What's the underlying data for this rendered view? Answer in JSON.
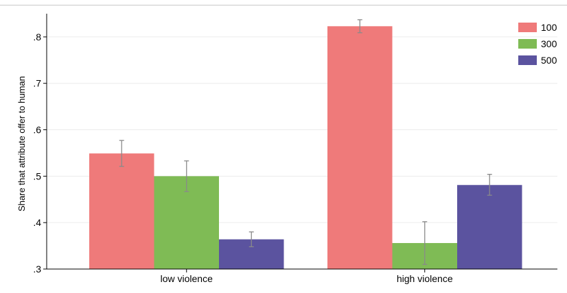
{
  "chart_data": {
    "type": "bar",
    "title": "",
    "xlabel": "",
    "ylabel": "Share that attribute offer to human",
    "categories": [
      "low violence",
      "high violence"
    ],
    "series": [
      {
        "name": "100",
        "color": "#ef7a7a",
        "values": [
          0.549,
          0.823
        ],
        "ci_low": [
          0.521,
          0.809
        ],
        "ci_high": [
          0.577,
          0.837
        ]
      },
      {
        "name": "300",
        "color": "#7fbb55",
        "values": [
          0.5,
          0.356
        ],
        "ci_low": [
          0.467,
          0.31
        ],
        "ci_high": [
          0.533,
          0.402
        ]
      },
      {
        "name": "500",
        "color": "#5b539f",
        "values": [
          0.364,
          0.481
        ],
        "ci_low": [
          0.348,
          0.459
        ],
        "ci_high": [
          0.38,
          0.504
        ]
      }
    ],
    "ylim": [
      0.3,
      0.85
    ],
    "yticks": [
      0.3,
      0.4,
      0.5,
      0.6,
      0.7,
      0.8
    ],
    "ytick_labels": [
      ".3",
      ".4",
      ".5",
      ".6",
      ".7",
      ".8"
    ],
    "grid": true,
    "legend_position": "top-right",
    "error_bars": true
  }
}
